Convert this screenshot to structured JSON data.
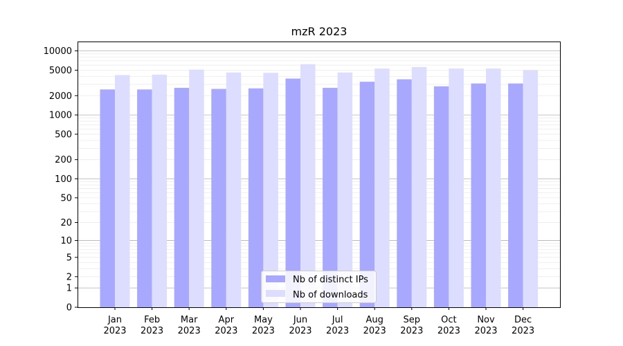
{
  "chart_data": {
    "type": "bar",
    "title": "mzR 2023",
    "xlabel": "",
    "ylabel": "",
    "scale": "log1p",
    "ylim": [
      0,
      14000
    ],
    "yticks": [
      0,
      1,
      2,
      5,
      10,
      20,
      50,
      100,
      200,
      500,
      1000,
      2000,
      5000,
      10000
    ],
    "grid": true,
    "legend_position": "bottom-center",
    "categories": [
      "Jan\n2023",
      "Feb\n2023",
      "Mar\n2023",
      "Apr\n2023",
      "May\n2023",
      "Jun\n2023",
      "Jul\n2023",
      "Aug\n2023",
      "Sep\n2023",
      "Oct\n2023",
      "Nov\n2023",
      "Dec\n2023"
    ],
    "series": [
      {
        "name": "Nb of distinct IPs",
        "color": "#a8a8ff",
        "values": [
          2500,
          2500,
          2650,
          2550,
          2600,
          3700,
          2650,
          3300,
          3600,
          2800,
          3100,
          3100
        ]
      },
      {
        "name": "Nb of downloads",
        "color": "#ddddff",
        "values": [
          4200,
          4250,
          5100,
          4600,
          4550,
          6200,
          4600,
          5300,
          5600,
          5300,
          5300,
          5000
        ]
      }
    ]
  }
}
